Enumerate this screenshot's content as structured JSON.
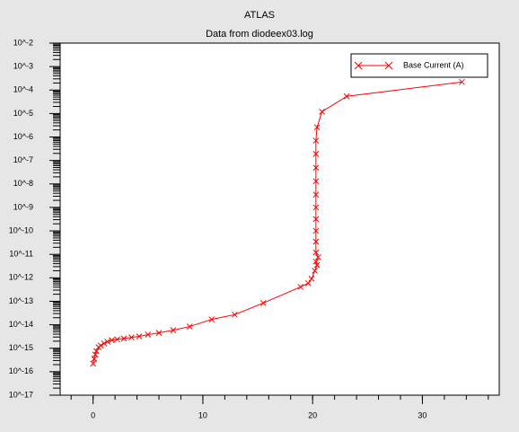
{
  "chart_data": {
    "type": "line",
    "title": "ATLAS",
    "subtitle": "Data from diodeex03.log",
    "log_y": true,
    "legend": "top-right",
    "xlim": [
      -3,
      37
    ],
    "xticks": [
      0,
      10,
      20,
      30
    ],
    "ylim": [
      1e-17,
      0.01
    ],
    "yticks": [
      {
        "value": 0.01,
        "label": "10^-2"
      },
      {
        "value": 0.001,
        "label": "10^-3"
      },
      {
        "value": 0.0001,
        "label": "10^-4"
      },
      {
        "value": 1e-05,
        "label": "10^-5"
      },
      {
        "value": 1e-06,
        "label": "10^-6"
      },
      {
        "value": 1e-07,
        "label": "10^-7"
      },
      {
        "value": 1e-08,
        "label": "10^-8"
      },
      {
        "value": 1e-09,
        "label": "10^-9"
      },
      {
        "value": 1e-10,
        "label": "10^-10"
      },
      {
        "value": 1e-11,
        "label": "10^-11"
      },
      {
        "value": 1e-12,
        "label": "10^-12"
      },
      {
        "value": 1e-13,
        "label": "10^-13"
      },
      {
        "value": 1e-14,
        "label": "10^-14"
      },
      {
        "value": 1e-15,
        "label": "10^-15"
      },
      {
        "value": 1e-16,
        "label": "10^-16"
      },
      {
        "value": 1e-17,
        "label": "10^-17"
      }
    ],
    "x": [
      0,
      0.1,
      0.2,
      0.3,
      0.5,
      0.7,
      1.0,
      1.3,
      1.7,
      2.2,
      2.8,
      3.5,
      4.2,
      5.0,
      6.0,
      7.3,
      8.8,
      10.8,
      12.9,
      15.5,
      18.9,
      19.6,
      19.9,
      20.2,
      20.4,
      20.3,
      20.5,
      20.3,
      20.3,
      20.3,
      20.3,
      20.3,
      20.3,
      20.3,
      20.3,
      20.3,
      20.3,
      20.4,
      20.85,
      23.1,
      33.6
    ],
    "series": [
      {
        "name": "Base Current (A)",
        "color": "#ff0000",
        "values": [
          2.2e-16,
          3.5e-16,
          5.4e-16,
          7.6e-16,
          1.1e-15,
          1.3e-15,
          1.6e-15,
          1.9e-15,
          2.2e-15,
          2.4e-15,
          2.6e-15,
          2.9e-15,
          3.2e-15,
          3.8e-15,
          4.5e-15,
          5.9e-15,
          8.4e-15,
          1.7e-14,
          2.7e-14,
          8.4e-14,
          4.1e-13,
          5.9e-13,
          9.2e-13,
          2e-12,
          3.5e-12,
          4.9e-12,
          7.6e-12,
          1.2e-11,
          3.5e-11,
          1e-10,
          3.2e-10,
          1e-09,
          3.5e-09,
          1.3e-08,
          4.9e-08,
          1.9e-07,
          7e-07,
          2.6e-06,
          1.2e-05,
          5.4e-05,
          0.00022
        ]
      }
    ]
  }
}
